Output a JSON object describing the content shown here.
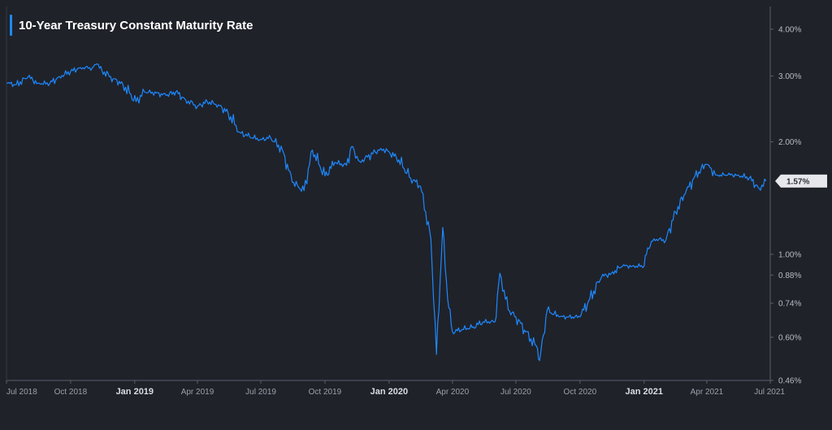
{
  "chart_data": {
    "type": "line",
    "title": "10-Year Treasury Constant Maturity Rate",
    "xlabel": "",
    "ylabel": "",
    "y_scale": "log",
    "ylim": [
      0.46,
      4.6
    ],
    "xlim": [
      "2018-07-01",
      "2021-07-01"
    ],
    "grid": false,
    "legend": "none",
    "y_ticks": [
      {
        "value": 4.0,
        "label": "4.00%"
      },
      {
        "value": 3.0,
        "label": "3.00%"
      },
      {
        "value": 2.0,
        "label": "2.00%"
      },
      {
        "value": 1.0,
        "label": "1.00%"
      },
      {
        "value": 0.88,
        "label": "0.88%"
      },
      {
        "value": 0.74,
        "label": "0.74%"
      },
      {
        "value": 0.6,
        "label": "0.60%"
      },
      {
        "value": 0.46,
        "label": "0.46%"
      }
    ],
    "x_ticks": [
      {
        "date": "2018-07-01",
        "label": "Jul 2018",
        "major": false
      },
      {
        "date": "2018-10-01",
        "label": "Oct 2018",
        "major": false
      },
      {
        "date": "2019-01-01",
        "label": "Jan 2019",
        "major": true
      },
      {
        "date": "2019-04-01",
        "label": "Apr 2019",
        "major": false
      },
      {
        "date": "2019-07-01",
        "label": "Jul 2019",
        "major": false
      },
      {
        "date": "2019-10-01",
        "label": "Oct 2019",
        "major": false
      },
      {
        "date": "2020-01-01",
        "label": "Jan 2020",
        "major": true
      },
      {
        "date": "2020-04-01",
        "label": "Apr 2020",
        "major": false
      },
      {
        "date": "2020-07-01",
        "label": "Jul 2020",
        "major": false
      },
      {
        "date": "2020-10-01",
        "label": "Oct 2020",
        "major": false
      },
      {
        "date": "2021-01-01",
        "label": "Jan 2021",
        "major": true
      },
      {
        "date": "2021-04-01",
        "label": "Apr 2021",
        "major": false
      },
      {
        "date": "2021-07-01",
        "label": "Jul 2021",
        "major": false
      }
    ],
    "last_value_label": "1.57%",
    "colors": {
      "background": "#1f2229",
      "line": "#1e88ff",
      "axis": "#5a606b",
      "label_bg": "#e6e8eb"
    },
    "series": [
      {
        "color": "#1e88ff",
        "points": [
          [
            "2018-07-01",
            2.87
          ],
          [
            "2018-07-15",
            2.84
          ],
          [
            "2018-08-01",
            2.98
          ],
          [
            "2018-08-15",
            2.87
          ],
          [
            "2018-09-01",
            2.86
          ],
          [
            "2018-09-15",
            2.99
          ],
          [
            "2018-10-01",
            3.08
          ],
          [
            "2018-10-15",
            3.16
          ],
          [
            "2018-11-01",
            3.15
          ],
          [
            "2018-11-08",
            3.23
          ],
          [
            "2018-11-15",
            3.1
          ],
          [
            "2018-12-01",
            2.95
          ],
          [
            "2018-12-15",
            2.85
          ],
          [
            "2019-01-03",
            2.56
          ],
          [
            "2019-01-15",
            2.72
          ],
          [
            "2019-02-01",
            2.7
          ],
          [
            "2019-02-15",
            2.66
          ],
          [
            "2019-03-01",
            2.72
          ],
          [
            "2019-03-15",
            2.59
          ],
          [
            "2019-04-01",
            2.49
          ],
          [
            "2019-04-15",
            2.56
          ],
          [
            "2019-05-01",
            2.51
          ],
          [
            "2019-05-15",
            2.39
          ],
          [
            "2019-06-01",
            2.12
          ],
          [
            "2019-06-15",
            2.06
          ],
          [
            "2019-07-01",
            2.03
          ],
          [
            "2019-07-15",
            2.05
          ],
          [
            "2019-08-01",
            1.9
          ],
          [
            "2019-08-15",
            1.56
          ],
          [
            "2019-09-01",
            1.48
          ],
          [
            "2019-09-13",
            1.9
          ],
          [
            "2019-10-01",
            1.62
          ],
          [
            "2019-10-15",
            1.76
          ],
          [
            "2019-11-01",
            1.73
          ],
          [
            "2019-11-08",
            1.94
          ],
          [
            "2019-11-20",
            1.77
          ],
          [
            "2019-12-01",
            1.82
          ],
          [
            "2019-12-20",
            1.92
          ],
          [
            "2020-01-01",
            1.88
          ],
          [
            "2020-01-15",
            1.79
          ],
          [
            "2020-02-01",
            1.6
          ],
          [
            "2020-02-15",
            1.52
          ],
          [
            "2020-03-01",
            1.1
          ],
          [
            "2020-03-09",
            0.54
          ],
          [
            "2020-03-18",
            1.18
          ],
          [
            "2020-03-25",
            0.76
          ],
          [
            "2020-04-01",
            0.62
          ],
          [
            "2020-04-15",
            0.63
          ],
          [
            "2020-05-01",
            0.64
          ],
          [
            "2020-05-15",
            0.66
          ],
          [
            "2020-06-01",
            0.66
          ],
          [
            "2020-06-08",
            0.89
          ],
          [
            "2020-06-20",
            0.71
          ],
          [
            "2020-07-01",
            0.68
          ],
          [
            "2020-07-15",
            0.62
          ],
          [
            "2020-08-01",
            0.56
          ],
          [
            "2020-08-04",
            0.52
          ],
          [
            "2020-08-15",
            0.71
          ],
          [
            "2020-09-01",
            0.68
          ],
          [
            "2020-09-15",
            0.68
          ],
          [
            "2020-10-01",
            0.68
          ],
          [
            "2020-10-15",
            0.76
          ],
          [
            "2020-11-01",
            0.87
          ],
          [
            "2020-11-15",
            0.89
          ],
          [
            "2020-12-01",
            0.93
          ],
          [
            "2020-12-15",
            0.93
          ],
          [
            "2021-01-01",
            0.93
          ],
          [
            "2021-01-06",
            1.04
          ],
          [
            "2021-01-15",
            1.1
          ],
          [
            "2021-02-01",
            1.09
          ],
          [
            "2021-02-15",
            1.3
          ],
          [
            "2021-03-01",
            1.45
          ],
          [
            "2021-03-15",
            1.62
          ],
          [
            "2021-03-31",
            1.74
          ],
          [
            "2021-04-15",
            1.63
          ],
          [
            "2021-05-01",
            1.63
          ],
          [
            "2021-05-15",
            1.63
          ],
          [
            "2021-06-01",
            1.6
          ],
          [
            "2021-06-15",
            1.5
          ],
          [
            "2021-06-25",
            1.57
          ]
        ]
      }
    ]
  }
}
